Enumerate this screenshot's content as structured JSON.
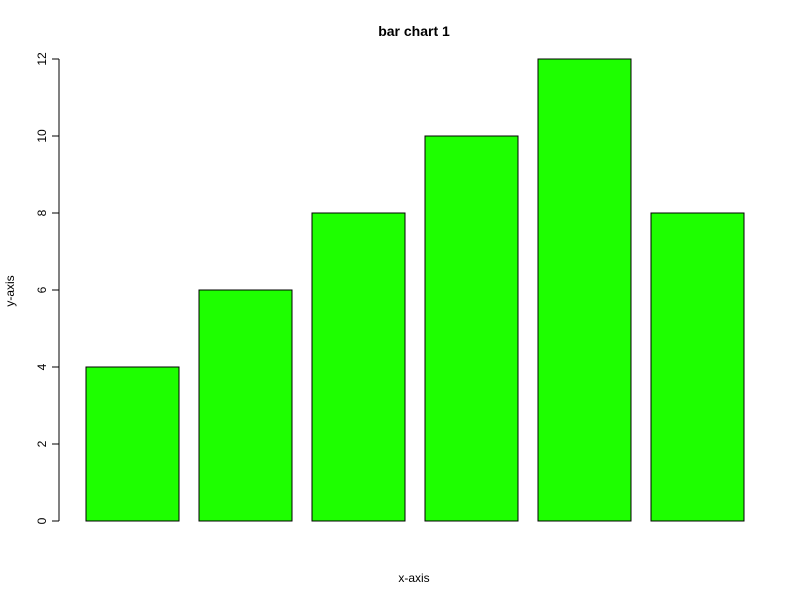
{
  "chart_data": {
    "type": "bar",
    "title": "bar chart 1",
    "xlabel": "x-axis",
    "ylabel": "y-axis",
    "values": [
      4,
      6,
      8,
      10,
      12,
      8
    ],
    "ylim": [
      0,
      12
    ],
    "yticks": [
      0,
      2,
      4,
      6,
      8,
      10,
      12
    ],
    "bar_color": "#1eff00",
    "border_color": "#000000",
    "grid": false,
    "legend": "none"
  }
}
